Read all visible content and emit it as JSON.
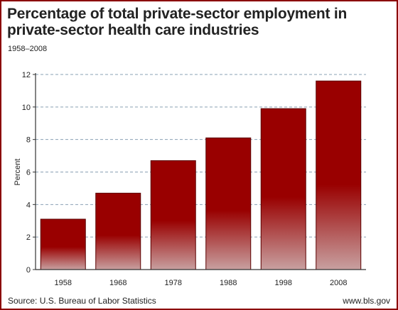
{
  "header": {
    "title": "Percentage of total private-sector employment in private-sector health care industries",
    "subtitle": "1958–2008"
  },
  "footer": {
    "source": "Source: U.S. Bureau of Labor Statistics",
    "url": "www.bls.gov"
  },
  "colors": {
    "bar_top": "#990000",
    "bar_bottom": "#c8a0a0",
    "grid": "#8aa0b4",
    "frame": "#8b0000"
  },
  "chart_data": {
    "type": "bar",
    "title": "Percentage of total private-sector employment in private-sector health care industries",
    "subtitle": "1958–2008",
    "categories": [
      "1958",
      "1968",
      "1978",
      "1988",
      "1998",
      "2008"
    ],
    "values": [
      3.1,
      4.7,
      6.7,
      8.1,
      9.9,
      11.6
    ],
    "xlabel": "",
    "ylabel": "Percent",
    "ylim": [
      0,
      12
    ],
    "yticks": [
      0,
      2,
      4,
      6,
      8,
      10,
      12
    ],
    "grid": true,
    "grid_style": "dashed horizontal"
  }
}
